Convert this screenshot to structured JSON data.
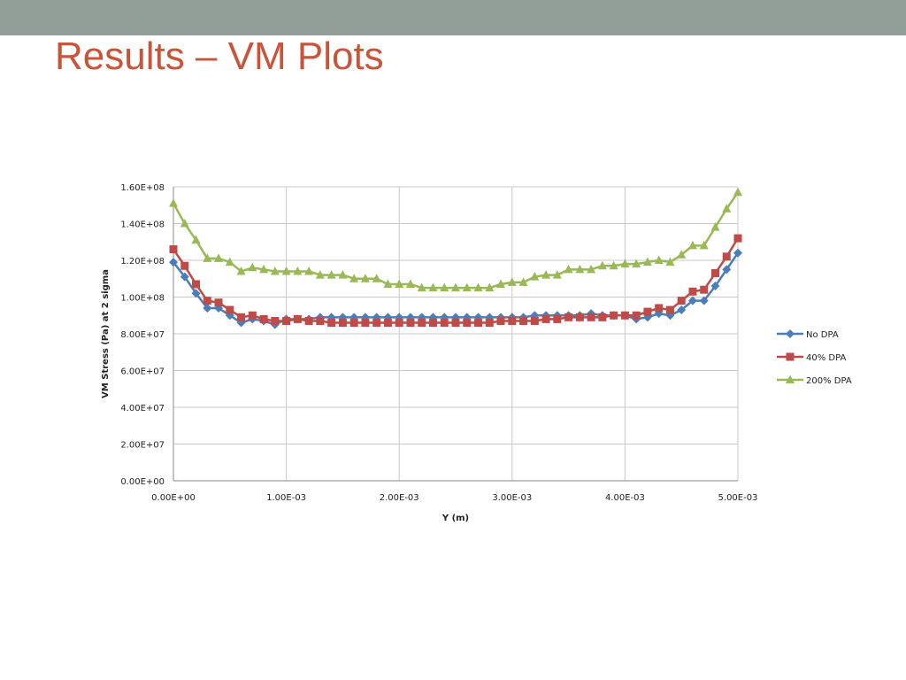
{
  "slide": {
    "title": "Results – VM Plots"
  },
  "colors": {
    "top_bar": "#919f98",
    "title": "#c8553a"
  },
  "chart_data": {
    "type": "line",
    "xlabel": "Y (m)",
    "ylabel": "VM Stress (Pa) at 2 sigma",
    "xlim": [
      0,
      0.005
    ],
    "ylim": [
      0,
      160000000
    ],
    "x_ticks": [
      0,
      0.001,
      0.002,
      0.003,
      0.004,
      0.005
    ],
    "x_tick_labels": [
      "0.00E+00",
      "1.00E-03",
      "2.00E-03",
      "3.00E-03",
      "4.00E-03",
      "5.00E-03"
    ],
    "y_ticks": [
      0,
      20000000,
      40000000,
      60000000,
      80000000,
      100000000,
      120000000,
      140000000,
      160000000
    ],
    "y_tick_labels": [
      "0.00E+00",
      "2.00E+07",
      "4.00E+07",
      "6.00E+07",
      "8.00E+07",
      "1.00E+08",
      "1.20E+08",
      "1.40E+08",
      "1.60E+08"
    ],
    "grid": true,
    "legend_position": "right",
    "x": [
      0,
      0.0001,
      0.0002,
      0.0003,
      0.0004,
      0.0005,
      0.0006,
      0.0007,
      0.0008,
      0.0009,
      0.001,
      0.0011,
      0.0012,
      0.0013,
      0.0014,
      0.0015,
      0.0016,
      0.0017,
      0.0018,
      0.0019,
      0.002,
      0.0021,
      0.0022,
      0.0023,
      0.0024,
      0.0025,
      0.0026,
      0.0027,
      0.0028,
      0.0029,
      0.003,
      0.0031,
      0.0032,
      0.0033,
      0.0034,
      0.0035,
      0.0036,
      0.0037,
      0.0038,
      0.0039,
      0.004,
      0.0041,
      0.0042,
      0.0043,
      0.0044,
      0.0045,
      0.0046,
      0.0047,
      0.0048,
      0.0049,
      0.005
    ],
    "series": [
      {
        "name": "No DPA",
        "color": "#4a7ebb",
        "marker": "diamond",
        "values": [
          119000000,
          111000000,
          102000000,
          94000000,
          94000000,
          90000000,
          86000000,
          88000000,
          87000000,
          85000000,
          88000000,
          88000000,
          88000000,
          89000000,
          89000000,
          89000000,
          89000000,
          89000000,
          89000000,
          89000000,
          89000000,
          89000000,
          89000000,
          89000000,
          89000000,
          89000000,
          89000000,
          89000000,
          89000000,
          89000000,
          89000000,
          89000000,
          90000000,
          90000000,
          90000000,
          90000000,
          90000000,
          91000000,
          90000000,
          90000000,
          90000000,
          88000000,
          89000000,
          91000000,
          90000000,
          93000000,
          98000000,
          98000000,
          106000000,
          115000000,
          124000000
        ]
      },
      {
        "name": "40% DPA",
        "color": "#be4b48",
        "marker": "square",
        "values": [
          126000000,
          117000000,
          107000000,
          98000000,
          97000000,
          93000000,
          89000000,
          90000000,
          88000000,
          87000000,
          87000000,
          88000000,
          87000000,
          87000000,
          86000000,
          86000000,
          86000000,
          86000000,
          86000000,
          86000000,
          86000000,
          86000000,
          86000000,
          86000000,
          86000000,
          86000000,
          86000000,
          86000000,
          86000000,
          87000000,
          87000000,
          87000000,
          87000000,
          88000000,
          88000000,
          89000000,
          89000000,
          89000000,
          89000000,
          90000000,
          90000000,
          90000000,
          92000000,
          94000000,
          93000000,
          98000000,
          103000000,
          104000000,
          113000000,
          122000000,
          132000000
        ]
      },
      {
        "name": "200% DPA",
        "color": "#98b954",
        "marker": "triangle",
        "values": [
          151000000,
          140000000,
          131000000,
          121000000,
          121000000,
          119000000,
          114000000,
          116000000,
          115000000,
          114000000,
          114000000,
          114000000,
          114000000,
          112000000,
          112000000,
          112000000,
          110000000,
          110000000,
          110000000,
          107000000,
          107000000,
          107000000,
          105000000,
          105000000,
          105000000,
          105000000,
          105000000,
          105000000,
          105000000,
          107000000,
          108000000,
          108000000,
          111000000,
          112000000,
          112000000,
          115000000,
          115000000,
          115000000,
          117000000,
          117000000,
          118000000,
          118000000,
          119000000,
          120000000,
          119000000,
          123000000,
          128000000,
          128000000,
          138000000,
          148000000,
          157000000
        ]
      }
    ]
  }
}
